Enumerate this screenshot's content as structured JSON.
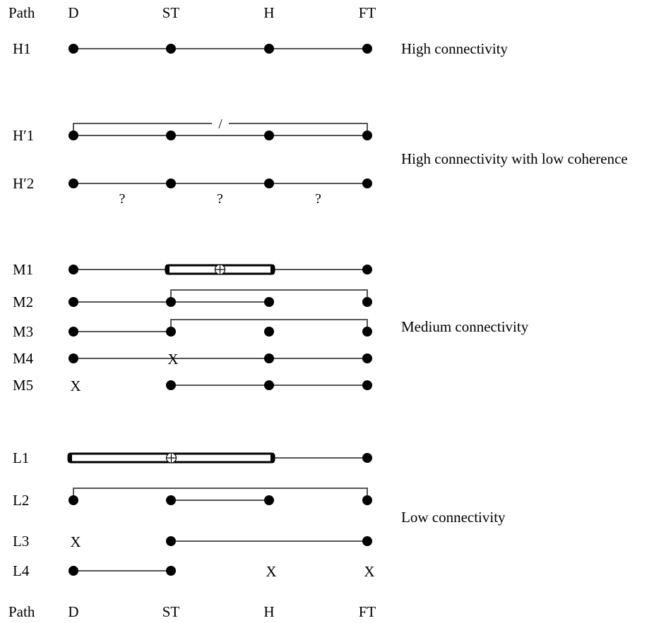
{
  "header": {
    "path_label": "Path",
    "columns": [
      "D",
      "ST",
      "H",
      "FT"
    ]
  },
  "footer": {
    "path_label": "Path",
    "columns": [
      "D",
      "ST",
      "H",
      "FT"
    ]
  },
  "groups": {
    "high": "High connectivity",
    "high_low_coherence": "High connectivity with low coherence",
    "medium": "Medium connectivity",
    "low": "Low connectivity"
  },
  "paths": [
    {
      "label": "H1",
      "nodes": [
        "D",
        "ST",
        "H",
        "FT"
      ],
      "links": [
        [
          "D",
          "ST"
        ],
        [
          "ST",
          "H"
        ],
        [
          "H",
          "FT"
        ]
      ],
      "arches": [],
      "missing": [],
      "uncertain": [],
      "capsule": null
    },
    {
      "label": "H′1",
      "nodes": [
        "D",
        "ST",
        "H",
        "FT"
      ],
      "links": [
        [
          "D",
          "ST"
        ],
        [
          "ST",
          "H"
        ],
        [
          "H",
          "FT"
        ]
      ],
      "arches": [
        {
          "from": "D",
          "to": "FT",
          "broken": true
        }
      ],
      "missing": [],
      "uncertain": [],
      "capsule": null
    },
    {
      "label": "H′2",
      "nodes": [
        "D",
        "ST",
        "H",
        "FT"
      ],
      "links": [
        [
          "D",
          "ST"
        ],
        [
          "ST",
          "H"
        ],
        [
          "H",
          "FT"
        ]
      ],
      "arches": [],
      "missing": [],
      "uncertain": [
        [
          "D",
          "ST"
        ],
        [
          "ST",
          "H"
        ],
        [
          "H",
          "FT"
        ]
      ],
      "capsule": null
    },
    {
      "label": "M1",
      "nodes": [
        "D",
        "FT"
      ],
      "links": [
        [
          "D",
          "ST"
        ],
        [
          "H",
          "FT"
        ]
      ],
      "arches": [],
      "missing": [],
      "uncertain": [],
      "capsule": {
        "from": "ST",
        "to": "H"
      }
    },
    {
      "label": "M2",
      "nodes": [
        "D",
        "ST",
        "H",
        "FT"
      ],
      "links": [
        [
          "D",
          "ST"
        ],
        [
          "ST",
          "H"
        ]
      ],
      "arches": [
        {
          "from": "ST",
          "to": "FT",
          "broken": false
        }
      ],
      "missing": [],
      "uncertain": [],
      "capsule": null
    },
    {
      "label": "M3",
      "nodes": [
        "D",
        "ST",
        "H",
        "FT"
      ],
      "links": [
        [
          "D",
          "ST"
        ]
      ],
      "arches": [
        {
          "from": "ST",
          "to": "FT",
          "broken": false
        }
      ],
      "missing": [],
      "uncertain": [],
      "capsule": null
    },
    {
      "label": "M4",
      "nodes": [
        "D",
        "H",
        "FT"
      ],
      "links": [
        [
          "D",
          "FT"
        ]
      ],
      "arches": [],
      "missing": [
        "ST"
      ],
      "uncertain": [],
      "capsule": null
    },
    {
      "label": "M5",
      "nodes": [
        "ST",
        "H",
        "FT"
      ],
      "links": [
        [
          "ST",
          "H"
        ],
        [
          "H",
          "FT"
        ]
      ],
      "arches": [],
      "missing": [
        "D"
      ],
      "uncertain": [],
      "capsule": null
    },
    {
      "label": "L1",
      "nodes": [
        "FT"
      ],
      "links": [
        [
          "H",
          "FT"
        ]
      ],
      "arches": [],
      "missing": [],
      "uncertain": [],
      "capsule": {
        "from": "D",
        "to": "H"
      }
    },
    {
      "label": "L2",
      "nodes": [
        "D",
        "ST",
        "H",
        "FT"
      ],
      "links": [
        [
          "ST",
          "H"
        ]
      ],
      "arches": [
        {
          "from": "D",
          "to": "FT",
          "broken": false
        }
      ],
      "missing": [],
      "uncertain": [],
      "capsule": null
    },
    {
      "label": "L3",
      "nodes": [
        "ST",
        "FT"
      ],
      "links": [
        [
          "ST",
          "FT"
        ]
      ],
      "arches": [],
      "missing": [
        "D"
      ],
      "uncertain": [],
      "capsule": null
    },
    {
      "label": "L4",
      "nodes": [
        "D",
        "ST"
      ],
      "links": [
        [
          "D",
          "ST"
        ]
      ],
      "arches": [],
      "missing": [
        "H",
        "FT"
      ],
      "uncertain": [],
      "capsule": null
    }
  ],
  "symbols": {
    "missing": "X",
    "uncertain": "?",
    "broken": "/"
  }
}
